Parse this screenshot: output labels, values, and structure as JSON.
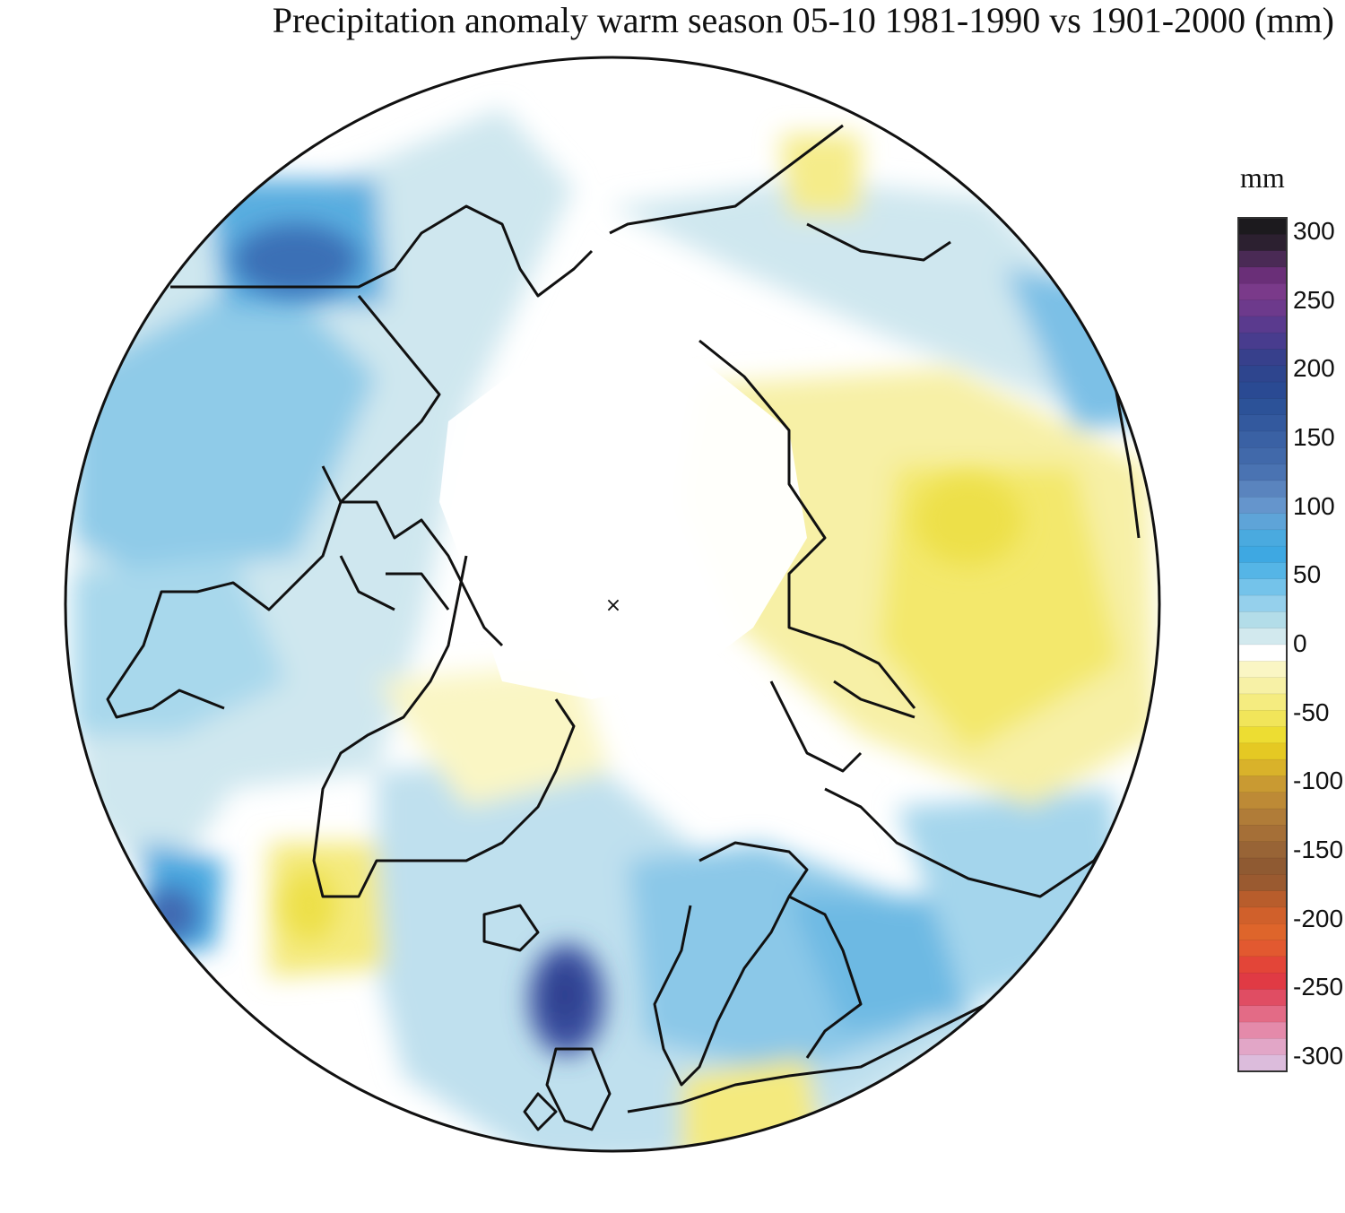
{
  "title": "Precipitation anomaly warm season 05-10 1981-1990 vs 1901-2000 (mm)",
  "map": {
    "projection": "north-polar-stereographic",
    "pole_marker": "×"
  },
  "colorbar": {
    "unit": "mm",
    "range": [
      -300,
      300
    ],
    "ticks": [
      "300",
      "250",
      "200",
      "150",
      "100",
      "50",
      "0",
      "-50",
      "-100",
      "-150",
      "-200",
      "-250",
      "-300"
    ],
    "colors_top_to_bottom": [
      "#1c1a1e",
      "#2c2030",
      "#4a2a55",
      "#6a2f78",
      "#7a3a8a",
      "#6d3a8c",
      "#5a3a8e",
      "#483c8e",
      "#37408c",
      "#2e458e",
      "#2a4a93",
      "#2c5298",
      "#33599e",
      "#3a61a4",
      "#4169aa",
      "#4a73b2",
      "#5a84be",
      "#6595cc",
      "#5ea4d8",
      "#4aaadf",
      "#3ea8e2",
      "#55b5e6",
      "#74c3ea",
      "#95d0ec",
      "#b3dde9",
      "#d2e9ee",
      "#ffffff",
      "#faf6c4",
      "#f7f1a6",
      "#f5ec80",
      "#f1e55a",
      "#eddd32",
      "#e5c923",
      "#d9b22a",
      "#c99a32",
      "#bd8a36",
      "#b07c38",
      "#a56f37",
      "#986436",
      "#8f5a32",
      "#9a5a30",
      "#b85d2c",
      "#d0602b",
      "#de652b",
      "#e25930",
      "#e34538",
      "#e03a44",
      "#e04d63",
      "#e36b86",
      "#e48aaa",
      "#e2a6c7",
      "#dcbcdc"
    ]
  }
}
